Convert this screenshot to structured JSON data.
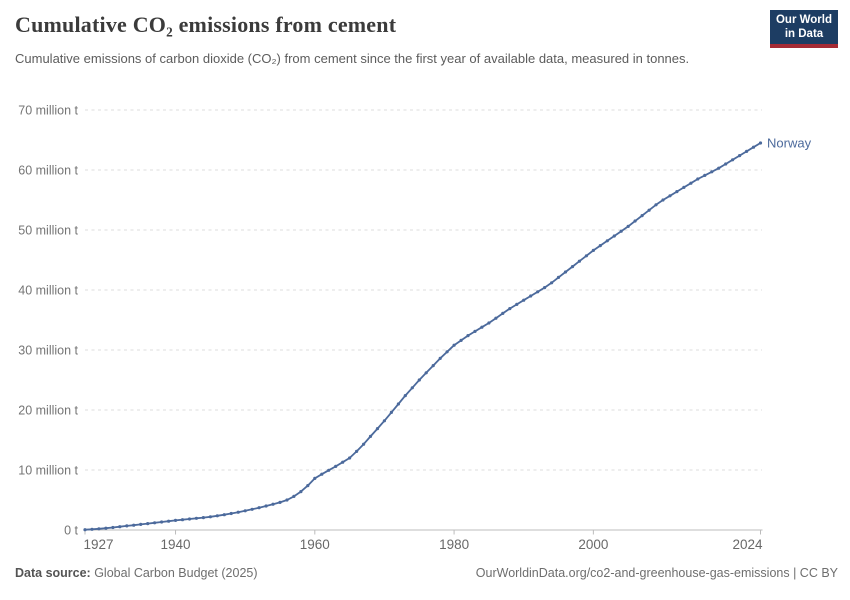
{
  "header": {
    "title": "Cumulative CO₂ emissions from cement",
    "logo": {
      "line1": "Our World",
      "line2": "in Data",
      "bg_color": "#1d3d63",
      "bar_color": "#a52b35"
    }
  },
  "subtitle": "Cumulative emissions of carbon dioxide (CO₂) from cement since the first year of available data, measured in tonnes.",
  "footer": {
    "datasource_label": "Data source:",
    "datasource_value": " Global Carbon Budget (2025)",
    "right_text": "OurWorldinData.org/co2-and-greenhouse-gas-emissions | CC BY"
  },
  "chart_data": {
    "type": "line",
    "title": "Cumulative CO₂ emissions from cement",
    "xlabel": "",
    "ylabel": "tonnes",
    "x_range": [
      1927,
      2024
    ],
    "y_range": [
      0,
      70
    ],
    "grid": "dashed-horizontal",
    "legend_position": "end-of-line",
    "colors": {
      "line": "#4C6A9C",
      "gridline": "#dcdcdc",
      "axis": "#bcbcbc"
    },
    "y_ticks": [
      {
        "v": 0,
        "label": "0 t"
      },
      {
        "v": 10,
        "label": "10 million t"
      },
      {
        "v": 20,
        "label": "20 million t"
      },
      {
        "v": 30,
        "label": "30 million t"
      },
      {
        "v": 40,
        "label": "40 million t"
      },
      {
        "v": 50,
        "label": "50 million t"
      },
      {
        "v": 60,
        "label": "60 million t"
      },
      {
        "v": 70,
        "label": "70 million t"
      }
    ],
    "x_ticks": [
      {
        "year": 1927,
        "label": "1927",
        "anchor": "start"
      },
      {
        "year": 1940,
        "label": "1940",
        "anchor": "middle"
      },
      {
        "year": 1960,
        "label": "1960",
        "anchor": "middle"
      },
      {
        "year": 1980,
        "label": "1980",
        "anchor": "middle"
      },
      {
        "year": 2000,
        "label": "2000",
        "anchor": "middle"
      },
      {
        "year": 2024,
        "label": "2024",
        "anchor": "end"
      }
    ],
    "series": [
      {
        "name": "Norway",
        "color": "#4C6A9C",
        "x": [
          1927,
          1928,
          1929,
          1930,
          1931,
          1932,
          1933,
          1934,
          1935,
          1936,
          1937,
          1938,
          1939,
          1940,
          1941,
          1942,
          1943,
          1944,
          1945,
          1946,
          1947,
          1948,
          1949,
          1950,
          1951,
          1952,
          1953,
          1954,
          1955,
          1956,
          1957,
          1958,
          1959,
          1960,
          1961,
          1962,
          1963,
          1964,
          1965,
          1966,
          1967,
          1968,
          1969,
          1970,
          1971,
          1972,
          1973,
          1974,
          1975,
          1976,
          1977,
          1978,
          1979,
          1980,
          1981,
          1982,
          1983,
          1984,
          1985,
          1986,
          1987,
          1988,
          1989,
          1990,
          1991,
          1992,
          1993,
          1994,
          1995,
          1996,
          1997,
          1998,
          1999,
          2000,
          2001,
          2002,
          2003,
          2004,
          2005,
          2006,
          2007,
          2008,
          2009,
          2010,
          2011,
          2012,
          2013,
          2014,
          2015,
          2016,
          2017,
          2018,
          2019,
          2020,
          2021,
          2022,
          2023,
          2024
        ],
        "values": [
          0.05,
          0.12,
          0.2,
          0.3,
          0.42,
          0.55,
          0.68,
          0.8,
          0.93,
          1.07,
          1.2,
          1.33,
          1.47,
          1.6,
          1.72,
          1.83,
          1.95,
          2.07,
          2.2,
          2.36,
          2.55,
          2.75,
          2.97,
          3.2,
          3.45,
          3.72,
          4.0,
          4.3,
          4.6,
          5.0,
          5.6,
          6.4,
          7.4,
          8.6,
          9.3,
          9.95,
          10.6,
          11.3,
          12.0,
          13.1,
          14.3,
          15.6,
          16.9,
          18.2,
          19.6,
          21.0,
          22.4,
          23.7,
          25.0,
          26.2,
          27.4,
          28.6,
          29.7,
          30.8,
          31.6,
          32.4,
          33.1,
          33.8,
          34.5,
          35.3,
          36.1,
          36.9,
          37.6,
          38.3,
          39.0,
          39.7,
          40.4,
          41.2,
          42.1,
          43.0,
          43.9,
          44.8,
          45.7,
          46.6,
          47.4,
          48.2,
          49.0,
          49.8,
          50.6,
          51.5,
          52.4,
          53.3,
          54.2,
          55.0,
          55.7,
          56.4,
          57.1,
          57.8,
          58.5,
          59.1,
          59.7,
          60.3,
          61.0,
          61.7,
          62.4,
          63.1,
          63.8,
          64.5
        ]
      }
    ]
  }
}
